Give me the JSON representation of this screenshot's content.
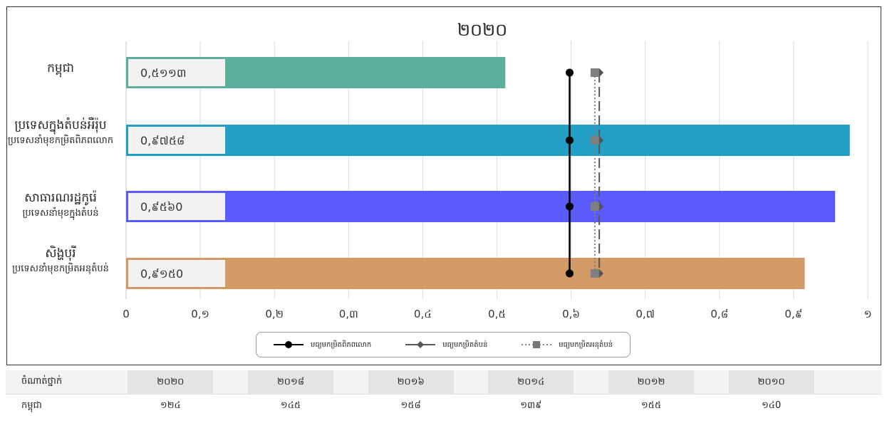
{
  "chart_data": {
    "type": "bar",
    "title": "២០២០",
    "categories": [
      {
        "name": "កម្ពុជា",
        "sub": ""
      },
      {
        "name": "ប្រទេសក្នុងតំបន់អឺរ៉ុប",
        "sub": "ប្រទេសនាំមុខកម្រិតពិភពលោក"
      },
      {
        "name": "សាធារណរដ្ឋកូរ៉េ",
        "sub": "ប្រទេសនាំមុខក្នុងតំបន់"
      },
      {
        "name": "សិង្ហបុរី",
        "sub": "ប្រទេសនាំមុខកម្រិតអនុតំបន់"
      }
    ],
    "values": [
      0.5113,
      0.9758,
      0.956,
      0.915
    ],
    "value_labels": [
      "0,៥១១៣",
      "0,៩៧៥៨",
      "0,៩៥៦0",
      "0,៩១៥0"
    ],
    "bar_colors": [
      "#5daf9c",
      "#239fc6",
      "#5b5bfc",
      "#d19a66"
    ],
    "reference_lines": [
      {
        "name": "មធ្យមកម្រិតពិភពលោក",
        "value": 0.598,
        "style": "solid-dot",
        "color": "#000000"
      },
      {
        "name": "មធ្យមកម្រិតតំបន់",
        "value": 0.638,
        "style": "dashed-diamond",
        "color": "#555555"
      },
      {
        "name": "មធ្យមកម្រិតអនុតំបន់",
        "value": 0.632,
        "style": "dotted-square",
        "color": "#7f7f7f"
      }
    ],
    "xlim": [
      0,
      1
    ],
    "xticks": [
      0,
      0.1,
      0.2,
      0.3,
      0.4,
      0.5,
      0.6,
      0.7,
      0.8,
      0.9,
      1
    ],
    "xtick_labels": [
      "0",
      "0,១",
      "0,២",
      "0,៣",
      "0,៤",
      "0,៥",
      "0,៦",
      "0,៧",
      "0,៨",
      "0,៩",
      "១"
    ],
    "grid": "vertical",
    "legend_position": "bottom"
  },
  "ranking_table": {
    "header_label": "ចំណាត់ថ្នាក់",
    "years": [
      "២០២០",
      "២០១៨",
      "២០១៦",
      "២០១៤",
      "២០១២",
      "២០១០"
    ],
    "rows": [
      {
        "label": "កម្ពុជា",
        "values": [
          "១២៤",
          "១៤៥",
          "១៥៨",
          "១៣៩",
          "១៥៥",
          "១៤0"
        ]
      }
    ]
  }
}
